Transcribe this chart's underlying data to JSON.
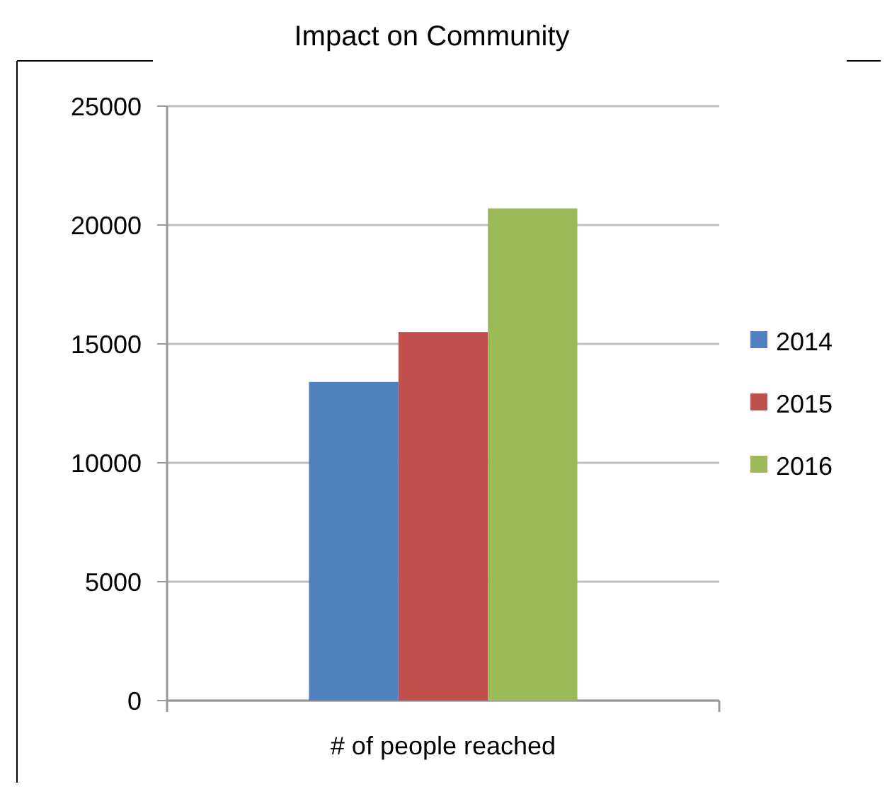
{
  "chart_data": {
    "type": "bar",
    "title": "Impact on Community",
    "categories": [
      "# of people reached"
    ],
    "series": [
      {
        "name": "2014",
        "color": "#4f81bd",
        "values": [
          13400
        ]
      },
      {
        "name": "2015",
        "color": "#c0504d",
        "values": [
          15500
        ]
      },
      {
        "name": "2016",
        "color": "#9bbb59",
        "values": [
          20700
        ]
      }
    ],
    "ylim": [
      0,
      25000
    ],
    "yticks": [
      0,
      5000,
      10000,
      15000,
      20000,
      25000
    ],
    "grid": "y",
    "legend": "right"
  }
}
